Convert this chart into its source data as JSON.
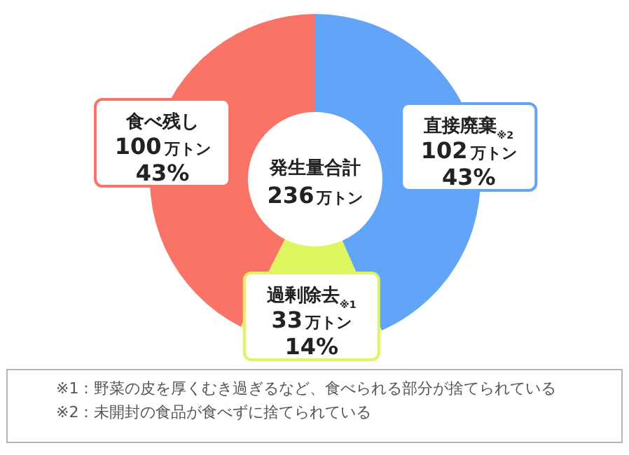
{
  "chart_data": {
    "type": "donut",
    "categories": [
      "直接廃棄$_{※2}$",
      "過剰除去$_{※1}$",
      "食べ残し"
    ],
    "values": [
      102,
      33,
      100
    ],
    "colors": [
      "#62a4f7",
      "#ddf55e",
      "#f97366"
    ],
    "value_labels": [
      "102万トン\n43%",
      "33万トン\n14%",
      "100万トン\n43%"
    ],
    "annotations": [
      "発生量合計",
      "236万トン",
      "※1：野菜の皮を厚くむき過ぎるなど、食べられる部分が捨てられている",
      "※2：未開封の食品が食べずに捨てられている"
    ]
  }
}
